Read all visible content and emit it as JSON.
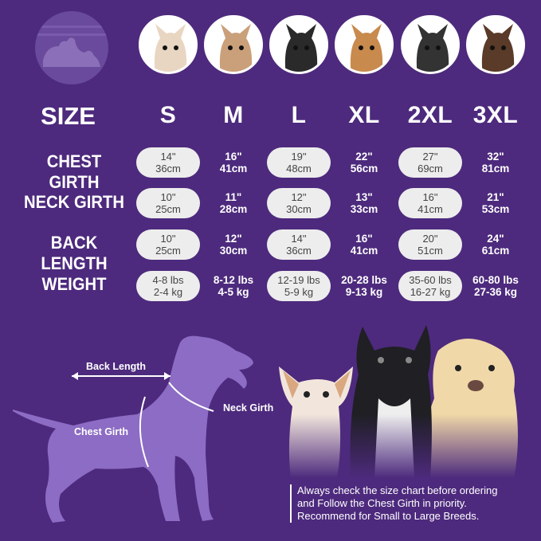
{
  "colors": {
    "background": "#4d2a7d",
    "pill": "#ededed",
    "silhouette": "#8c6cc4"
  },
  "logo_icon": "pet-cat-dog-logo",
  "breed_avatars": [
    "chihuahua",
    "shih-tzu",
    "boston-terrier",
    "beagle",
    "border-collie",
    "doberman"
  ],
  "table": {
    "size_header": "SIZE",
    "sizes": [
      "S",
      "M",
      "L",
      "XL",
      "2XL",
      "3XL"
    ],
    "rows": [
      {
        "label": "CHEST GIRTH",
        "values": [
          [
            "14\"",
            "36cm"
          ],
          [
            "16\"",
            "41cm"
          ],
          [
            "19\"",
            "48cm"
          ],
          [
            "22\"",
            "56cm"
          ],
          [
            "27\"",
            "69cm"
          ],
          [
            "32\"",
            "81cm"
          ]
        ]
      },
      {
        "label": "NECK GIRTH",
        "values": [
          [
            "10\"",
            "25cm"
          ],
          [
            "11\"",
            "28cm"
          ],
          [
            "12\"",
            "30cm"
          ],
          [
            "13\"",
            "33cm"
          ],
          [
            "16\"",
            "41cm"
          ],
          [
            "21\"",
            "53cm"
          ]
        ]
      },
      {
        "label": "BACK LENGTH",
        "values": [
          [
            "10\"",
            "25cm"
          ],
          [
            "12\"",
            "30cm"
          ],
          [
            "14\"",
            "36cm"
          ],
          [
            "16\"",
            "41cm"
          ],
          [
            "20\"",
            "51cm"
          ],
          [
            "24\"",
            "61cm"
          ]
        ]
      },
      {
        "label": "WEIGHT",
        "values": [
          [
            "4-8 lbs",
            "2-4 kg"
          ],
          [
            "8-12 lbs",
            "4-5 kg"
          ],
          [
            "12-19 lbs",
            "5-9 kg"
          ],
          [
            "20-28 lbs",
            "9-13 kg"
          ],
          [
            "35-60 lbs",
            "16-27 kg"
          ],
          [
            "60-80 lbs",
            "27-36 kg"
          ]
        ]
      }
    ]
  },
  "diagram": {
    "back_length": "Back Length",
    "neck_girth": "Neck Girth",
    "chest_girth": "Chest Girth"
  },
  "photo_dogs": [
    "chihuahua",
    "french-bulldog",
    "labrador"
  ],
  "note": [
    "Always check the size chart before ordering",
    "and Follow the Chest Girth in priority.",
    "Recommend for Small to Large Breeds."
  ]
}
